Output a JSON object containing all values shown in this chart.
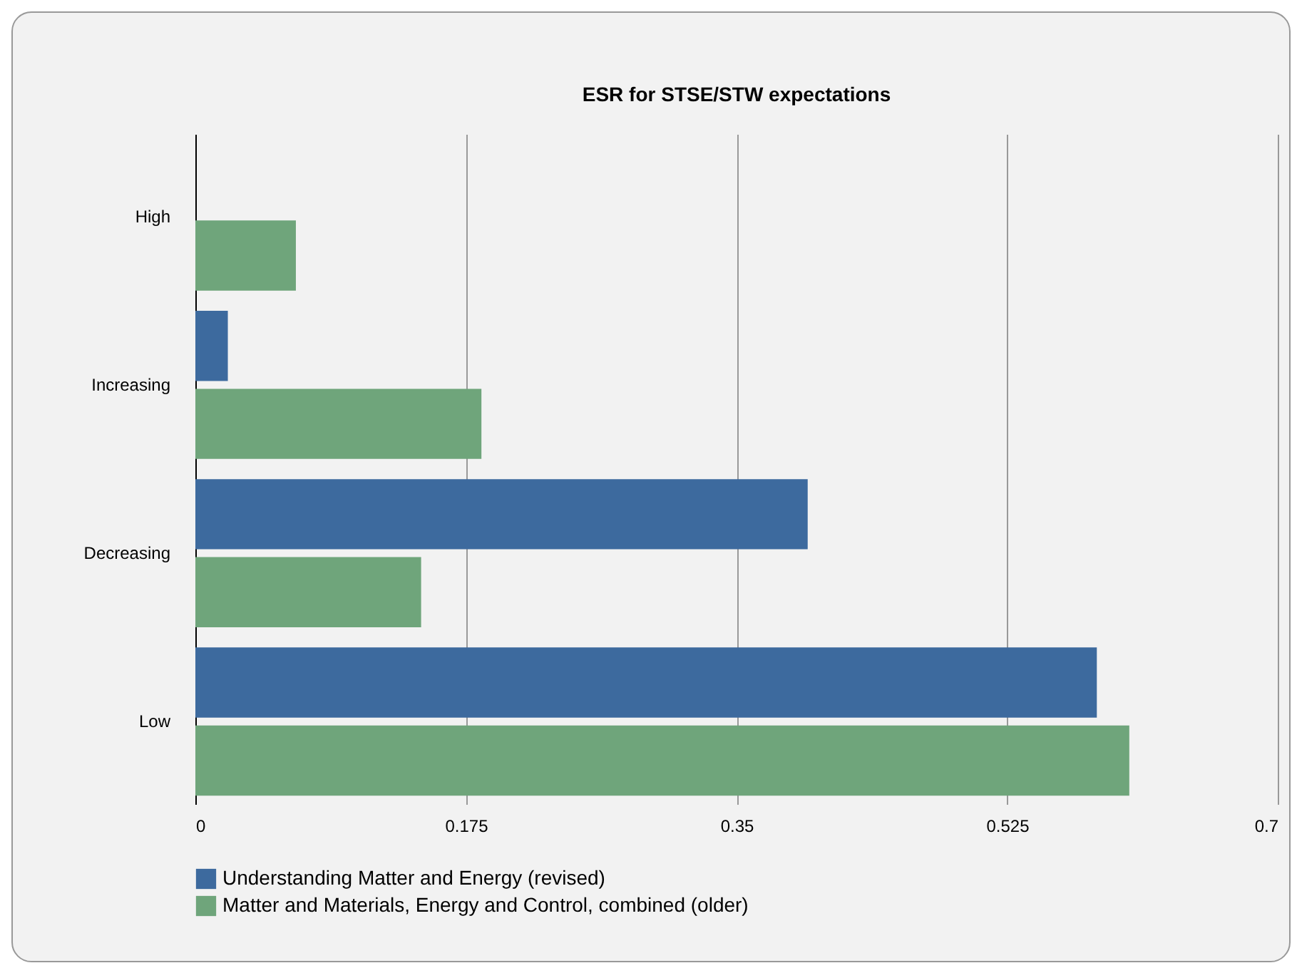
{
  "chart_data": {
    "type": "bar",
    "orientation": "horizontal",
    "title": "ESR for STSE/STW expectations",
    "categories": [
      "High",
      "Increasing",
      "Decreasing",
      "Low"
    ],
    "series": [
      {
        "name": "Understanding Matter and Energy (revised)",
        "color": "#3d6a9e",
        "values": [
          null,
          0.021,
          0.396,
          0.583
        ]
      },
      {
        "name": "Matter and Materials, Energy and Control, combined (older)",
        "color": "#6fa57b",
        "values": [
          0.065,
          0.185,
          0.146,
          0.604
        ]
      }
    ],
    "xlim": [
      0,
      0.7
    ],
    "xticks": [
      0,
      0.175,
      0.35,
      0.525,
      0.7
    ],
    "grid": "x",
    "legend": "bottom"
  }
}
